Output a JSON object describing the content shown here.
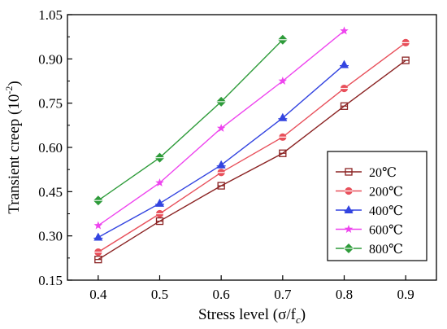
{
  "chart_data": {
    "type": "line",
    "title": "",
    "xlabel": "Stress level (σ/f",
    "xlabel_sub": "c",
    "xlabel_close": ")",
    "ylabel": "Transient creep (10",
    "ylabel_sup": "-2",
    "ylabel_close": ")",
    "xlim": [
      0.35,
      0.95
    ],
    "ylim": [
      0.15,
      1.05
    ],
    "xticks": [
      "0.4",
      "0.5",
      "0.6",
      "0.7",
      "0.8",
      "0.9"
    ],
    "yticks": [
      "0.15",
      "0.30",
      "0.45",
      "0.60",
      "0.75",
      "0.90",
      "1.05"
    ],
    "grid": false,
    "legend_position": "right",
    "series": [
      {
        "name": "20℃",
        "color": "#8B2323",
        "marker": "square",
        "x": [
          0.4,
          0.5,
          0.6,
          0.7,
          0.8,
          0.9
        ],
        "y": [
          0.22,
          0.35,
          0.47,
          0.58,
          0.74,
          0.895
        ]
      },
      {
        "name": "200℃",
        "color": "#E8505B",
        "marker": "circle",
        "x": [
          0.4,
          0.5,
          0.6,
          0.7,
          0.8,
          0.9
        ],
        "y": [
          0.245,
          0.375,
          0.515,
          0.635,
          0.8,
          0.955
        ]
      },
      {
        "name": "400℃",
        "color": "#3344E0",
        "marker": "triangle",
        "x": [
          0.4,
          0.5,
          0.6,
          0.7,
          0.8
        ],
        "y": [
          0.295,
          0.41,
          0.54,
          0.7,
          0.88
        ]
      },
      {
        "name": "600℃",
        "color": "#EE44EE",
        "marker": "star",
        "x": [
          0.4,
          0.5,
          0.6,
          0.7,
          0.8
        ],
        "y": [
          0.335,
          0.48,
          0.665,
          0.825,
          0.995
        ]
      },
      {
        "name": "800℃",
        "color": "#2E9B3A",
        "marker": "diamond",
        "x": [
          0.4,
          0.5,
          0.6,
          0.7
        ],
        "y": [
          0.42,
          0.565,
          0.755,
          0.965
        ]
      }
    ]
  }
}
